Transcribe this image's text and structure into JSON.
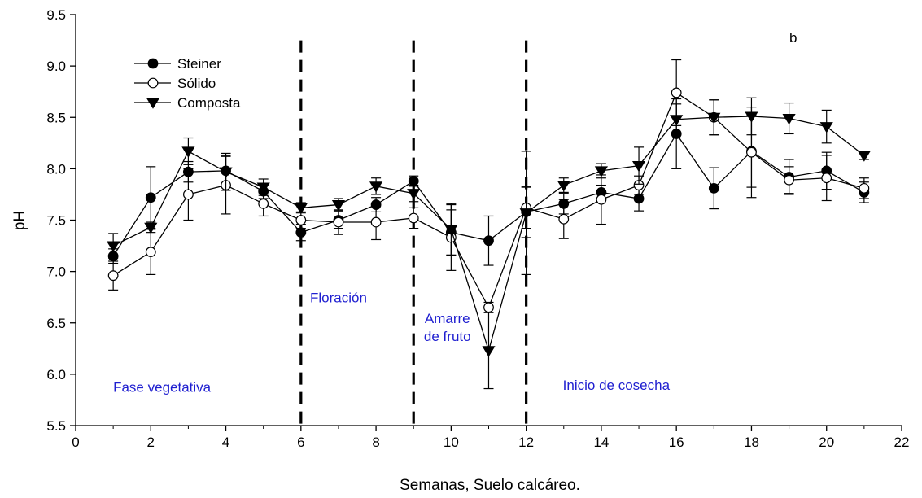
{
  "chart_data": {
    "type": "line",
    "panel_label": "b",
    "xlabel": "Semanas, Suelo calcáreo.",
    "ylabel": "pH",
    "xlim": [
      0,
      22
    ],
    "ylim": [
      5.5,
      9.5
    ],
    "x_ticks": [
      "0",
      "2",
      "4",
      "6",
      "8",
      "10",
      "12",
      "14",
      "16",
      "18",
      "20",
      "22"
    ],
    "y_ticks": [
      "5.5",
      "6.0",
      "6.5",
      "7.0",
      "7.5",
      "8.0",
      "8.5",
      "9.0",
      "9.5"
    ],
    "grid": false,
    "legend_position": "top-left",
    "x": [
      1,
      2,
      3,
      4,
      5,
      6,
      7,
      8,
      9,
      10,
      11,
      12,
      13,
      14,
      15,
      16,
      17,
      18,
      19,
      20,
      21
    ],
    "series": [
      {
        "name": "Steiner",
        "marker": "filled-circle",
        "values": [
          7.15,
          7.72,
          7.97,
          7.98,
          7.78,
          7.38,
          7.5,
          7.65,
          7.88,
          7.38,
          7.3,
          7.58,
          7.66,
          7.77,
          7.71,
          8.34,
          7.81,
          8.17,
          7.92,
          7.98,
          7.77
        ],
        "errors": [
          0.07,
          0.3,
          0.1,
          0.15,
          0.07,
          0.08,
          0.08,
          0.07,
          0.05,
          0.22,
          0.24,
          0.25,
          0.1,
          0.07,
          0.12,
          0.34,
          0.2,
          0.35,
          0.17,
          0.18,
          0.1
        ]
      },
      {
        "name": "Sólido",
        "marker": "open-circle",
        "values": [
          6.96,
          7.19,
          7.75,
          7.84,
          7.66,
          7.5,
          7.48,
          7.48,
          7.52,
          7.33,
          6.65,
          7.62,
          7.51,
          7.7,
          7.84,
          8.74,
          8.5,
          8.16,
          7.89,
          7.91,
          7.81
        ],
        "errors": [
          0.14,
          0.22,
          0.25,
          0.28,
          0.12,
          0.08,
          0.12,
          0.17,
          0.1,
          0.32,
          0.05,
          0.2,
          0.19,
          0.24,
          0.09,
          0.32,
          0.17,
          0.44,
          0.13,
          0.22,
          0.1
        ]
      },
      {
        "name": "Composta",
        "marker": "filled-triangle-down",
        "values": [
          7.25,
          7.43,
          8.17,
          7.97,
          7.82,
          7.62,
          7.65,
          7.83,
          7.76,
          7.41,
          6.23,
          7.57,
          7.84,
          7.98,
          8.03,
          8.48,
          8.5,
          8.51,
          8.49,
          8.41,
          8.13
        ],
        "errors": [
          0.12,
          0.05,
          0.13,
          0.18,
          0.08,
          0.05,
          0.06,
          0.08,
          0.08,
          0.25,
          0.37,
          0.6,
          0.07,
          0.07,
          0.18,
          0.15,
          0.17,
          0.18,
          0.15,
          0.16,
          0.04
        ]
      }
    ],
    "vertical_dashed_lines_x": [
      6,
      9,
      12
    ],
    "annotations": [
      {
        "lines": [
          "Fase vegetativa"
        ],
        "x": 2.3,
        "y": 5.83
      },
      {
        "lines": [
          "Floración"
        ],
        "x": 7.0,
        "y": 6.7
      },
      {
        "lines": [
          "Amarre",
          "de fruto"
        ],
        "x": 9.9,
        "y": 6.5
      },
      {
        "lines": [
          "Inicio de cosecha"
        ],
        "x": 14.4,
        "y": 5.85
      }
    ]
  }
}
